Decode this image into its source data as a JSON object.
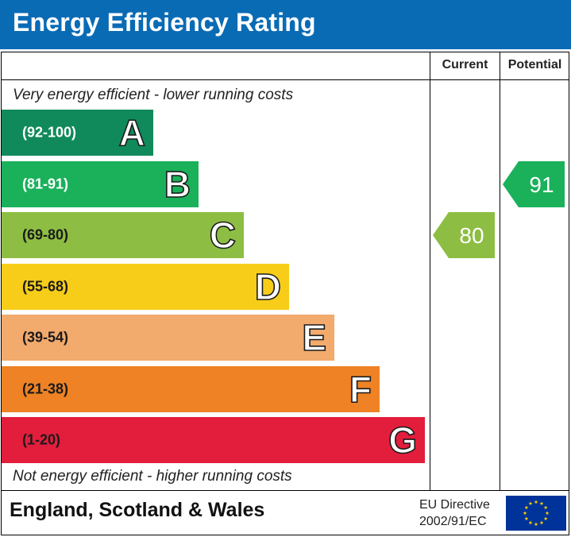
{
  "title": "Energy Efficiency Rating",
  "columns": {
    "current": "Current",
    "potential": "Potential"
  },
  "top_note": "Very energy efficient - lower running costs",
  "bottom_note": "Not energy efficient - higher running costs",
  "footer": {
    "region": "England, Scotland & Wales",
    "directive_line1": "EU Directive",
    "directive_line2": "2002/91/EC",
    "flag_icon": "eu-flag-icon"
  },
  "chart_data": {
    "type": "bar",
    "title": "Energy Efficiency Rating",
    "categories": [
      "A",
      "B",
      "C",
      "D",
      "E",
      "F",
      "G"
    ],
    "bands": [
      {
        "letter": "A",
        "range": "(92-100)",
        "min": 92,
        "max": 100,
        "color": "#108a5a",
        "range_color": "#ffffff"
      },
      {
        "letter": "B",
        "range": "(81-91)",
        "min": 81,
        "max": 91,
        "color": "#1ab15a",
        "range_color": "#ffffff"
      },
      {
        "letter": "C",
        "range": "(69-80)",
        "min": 69,
        "max": 80,
        "color": "#8dbe43",
        "range_color": "#1a1a1a"
      },
      {
        "letter": "D",
        "range": "(55-68)",
        "min": 55,
        "max": 68,
        "color": "#f7cd1a",
        "range_color": "#1a1a1a"
      },
      {
        "letter": "E",
        "range": "(39-54)",
        "min": 39,
        "max": 54,
        "color": "#f2aa6d",
        "range_color": "#1a1a1a"
      },
      {
        "letter": "F",
        "range": "(21-38)",
        "min": 21,
        "max": 38,
        "color": "#ee8224",
        "range_color": "#1a1a1a"
      },
      {
        "letter": "G",
        "range": "(1-20)",
        "min": 1,
        "max": 20,
        "color": "#e31d3c",
        "range_color": "#1a1a1a"
      }
    ],
    "series": [
      {
        "name": "Current",
        "value": 80,
        "band": "C"
      },
      {
        "name": "Potential",
        "value": 91,
        "band": "B"
      }
    ]
  }
}
